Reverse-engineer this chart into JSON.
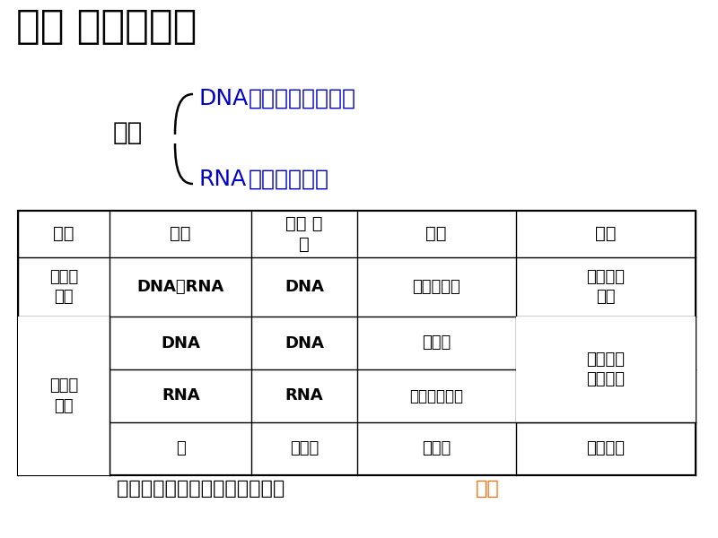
{
  "title": "二、 核酸的种类",
  "title_color": "#000000",
  "title_fontsize": 32,
  "bg_color": "#ffffff",
  "nucleic_acid_label": "核酸",
  "dna_label": "DNA",
  "dna_full": "（脲氧核糖核酸）",
  "rna_label": "RNA",
  "rna_full": "（核糖核酸）",
  "blue_color": "#0000cc",
  "black_color": "#000000",
  "orange_color": "#FF6600",
  "footer_text": "判断：一切生物的遗传物质都是 ",
  "footer_highlight": "核酸",
  "footer_color": "#000000",
  "footer_highlight_color": "#FF6600"
}
